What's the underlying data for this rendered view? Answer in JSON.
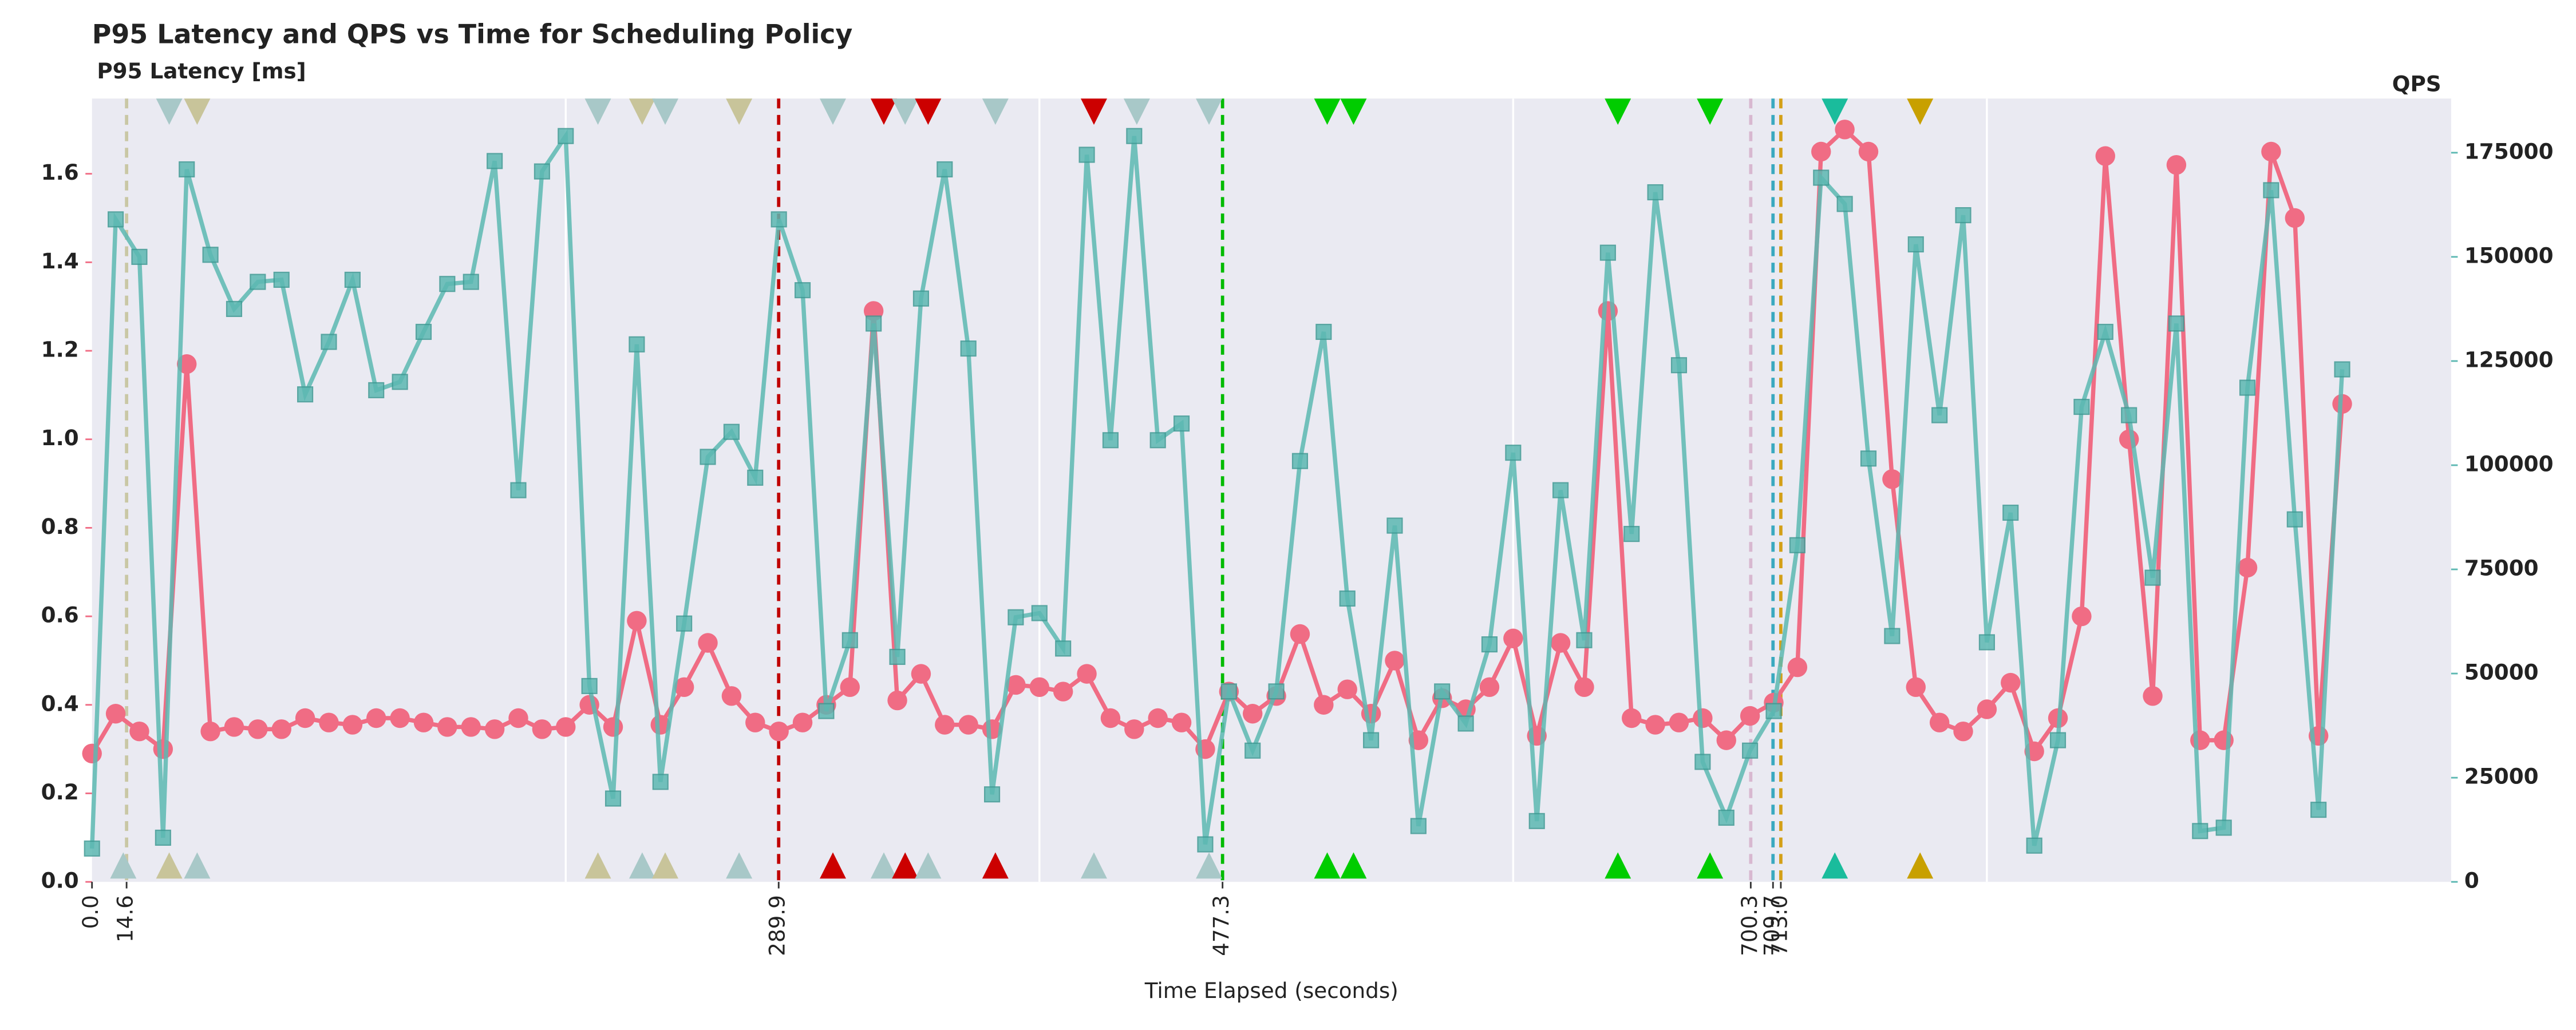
{
  "chart_data": {
    "type": "line",
    "title": "P95 Latency and QPS vs Time for Scheduling Policy",
    "ylabel": "P95 Latency [ms]",
    "y2label": "QPS",
    "xlabel": "Time Elapsed (seconds)",
    "x": [
      0,
      10,
      20,
      30,
      40,
      50,
      60,
      70,
      80,
      90,
      100,
      110,
      120,
      130,
      140,
      150,
      160,
      170,
      180,
      190,
      200,
      210,
      220,
      230,
      240,
      250,
      260,
      270,
      280,
      290,
      300,
      310,
      320,
      330,
      340,
      350,
      360,
      370,
      380,
      390,
      400,
      410,
      420,
      430,
      440,
      450,
      460,
      470,
      480,
      490,
      500,
      510,
      520,
      530,
      540,
      550,
      560,
      570,
      580,
      590,
      600,
      610,
      620,
      630,
      640,
      650,
      660,
      670,
      680,
      690,
      700,
      710,
      720,
      730,
      740,
      750,
      760,
      770,
      780,
      790,
      800,
      810,
      820,
      830,
      840,
      850,
      860,
      870,
      880,
      890,
      900,
      910,
      920,
      930,
      940,
      950
    ],
    "series": [
      {
        "color": "#f06c84",
        "marker": "circle",
        "values": [
          0.29,
          0.38,
          0.34,
          0.3,
          1.17,
          0.34,
          0.35,
          0.345,
          0.345,
          0.37,
          0.36,
          0.355,
          0.37,
          0.37,
          0.36,
          0.35,
          0.35,
          0.345,
          0.37,
          0.345,
          0.35,
          0.4,
          0.35,
          0.59,
          0.355,
          0.44,
          0.54,
          0.42,
          0.36,
          0.34,
          0.36,
          0.4,
          0.44,
          1.29,
          0.41,
          0.47,
          0.355,
          0.355,
          0.345,
          0.445,
          0.44,
          0.43,
          0.47,
          0.37,
          0.345,
          0.37,
          0.36,
          0.3,
          0.43,
          0.38,
          0.42,
          0.56,
          0.4,
          0.435,
          0.38,
          0.5,
          0.32,
          0.415,
          0.39,
          0.44,
          0.55,
          0.33,
          0.54,
          0.44,
          1.29,
          0.37,
          0.355,
          0.36,
          0.37,
          0.32,
          0.375,
          0.405,
          0.485,
          1.65,
          1.7,
          1.65,
          0.91,
          0.44,
          0.36,
          0.34,
          0.39,
          0.45,
          0.295,
          0.37,
          0.6,
          1.64,
          1.0,
          0.42,
          1.62,
          0.32,
          0.32,
          0.71,
          1.65,
          1.5,
          0.33,
          1.08
        ]
      },
      {
        "color": "#5cb8b2",
        "marker": "square",
        "axis": "y2",
        "values": [
          8000,
          159000,
          150000,
          10600,
          171000,
          150500,
          137500,
          144000,
          144500,
          117000,
          129600,
          144500,
          118000,
          120000,
          132000,
          143500,
          144000,
          173000,
          94000,
          170500,
          179000,
          47000,
          20000,
          129000,
          24000,
          62000,
          102000,
          108000,
          97000,
          159000,
          142000,
          41000,
          58000,
          134000,
          54000,
          140000,
          171000,
          128000,
          21000,
          63500,
          64500,
          56000,
          174500,
          106000,
          179000,
          106000,
          110000,
          9000,
          45700,
          31500,
          45700,
          101000,
          132000,
          68000,
          34000,
          85500,
          13400,
          45700,
          38000,
          57000,
          103000,
          14600,
          94000,
          58000,
          151000,
          83500,
          165500,
          124000,
          28800,
          15400,
          31500,
          41000,
          80800,
          169000,
          162700,
          101600,
          59000,
          153000,
          112000,
          160000,
          57500,
          88600,
          8700,
          34000,
          114000,
          132000,
          112000,
          73000,
          134000,
          12200,
          13000,
          118600,
          166000,
          87000,
          17300,
          123000
        ]
      }
    ],
    "xlim": [
      0,
      996
    ],
    "xticks": [
      {
        "value": 0,
        "label": "0.0"
      },
      14.6,
      289.9,
      477.3,
      700.3,
      709.7,
      {
        "value": 713,
        "label": "713.0"
      }
    ],
    "xgrid": [
      200,
      400,
      600,
      800
    ],
    "ylim": [
      0,
      1.77
    ],
    "yticks": [
      {
        "value": 0,
        "label": "0.0"
      },
      0.2,
      0.4,
      0.6,
      0.8,
      {
        "value": 1,
        "label": "1.0"
      },
      1.2,
      1.4,
      1.6
    ],
    "y2lim": [
      0,
      188000
    ],
    "y2ticks": [
      0,
      25000,
      50000,
      75000,
      100000,
      125000,
      150000,
      175000
    ],
    "vlines": [
      {
        "x": 14.6,
        "color": "#c9c7a5"
      },
      {
        "x": 289.9,
        "color": "#c00000"
      },
      {
        "x": 477.3,
        "color": "#00bb00"
      },
      {
        "x": 700.3,
        "color": "#d8b8d0"
      },
      {
        "x": 709.7,
        "color": "#3aa9c0"
      },
      {
        "x": 713,
        "color": "#d4a017"
      }
    ],
    "top_markers": [
      {
        "x": 32.6,
        "color": "#a8c8c8"
      },
      {
        "x": 44.4,
        "color": "#c8c49a"
      },
      {
        "x": 213.6,
        "color": "#a8c8c8"
      },
      {
        "x": 232.3,
        "color": "#c8c49a"
      },
      {
        "x": 242,
        "color": "#a8c8c8"
      },
      {
        "x": 273.2,
        "color": "#c8c49a"
      },
      {
        "x": 312.8,
        "color": "#a8c8c8"
      },
      {
        "x": 334.3,
        "color": "#cc0000"
      },
      {
        "x": 343.3,
        "color": "#a8c8c8"
      },
      {
        "x": 353,
        "color": "#cc0000"
      },
      {
        "x": 381.4,
        "color": "#a8c8c8"
      },
      {
        "x": 423,
        "color": "#cc0000"
      },
      {
        "x": 441.1,
        "color": "#a8c8c8"
      },
      {
        "x": 471.6,
        "color": "#a8c8c8"
      },
      {
        "x": 521.5,
        "color": "#00cc00"
      },
      {
        "x": 532.6,
        "color": "#00cc00"
      },
      {
        "x": 644.2,
        "color": "#00cc00"
      },
      {
        "x": 683.1,
        "color": "#00cc00"
      },
      {
        "x": 735.8,
        "color": "#1abc9c"
      },
      {
        "x": 771.8,
        "color": "#c8a000"
      }
    ],
    "bottom_markers": [
      {
        "x": 13.2,
        "color": "#a8c8c8"
      },
      {
        "x": 32.6,
        "color": "#c8c49a"
      },
      {
        "x": 44.4,
        "color": "#a8c8c8"
      },
      {
        "x": 213.6,
        "color": "#c8c49a"
      },
      {
        "x": 232.3,
        "color": "#a8c8c8"
      },
      {
        "x": 242,
        "color": "#c8c49a"
      },
      {
        "x": 273.2,
        "color": "#a8c8c8"
      },
      {
        "x": 312.8,
        "color": "#cc0000"
      },
      {
        "x": 334.3,
        "color": "#a8c8c8"
      },
      {
        "x": 343.3,
        "color": "#cc0000"
      },
      {
        "x": 353,
        "color": "#a8c8c8"
      },
      {
        "x": 381.4,
        "color": "#cc0000"
      },
      {
        "x": 423,
        "color": "#a8c8c8"
      },
      {
        "x": 471.6,
        "color": "#a8c8c8"
      },
      {
        "x": 521.5,
        "color": "#00cc00"
      },
      {
        "x": 532.6,
        "color": "#00cc00"
      },
      {
        "x": 644.2,
        "color": "#00cc00"
      },
      {
        "x": 683.1,
        "color": "#00cc00"
      },
      {
        "x": 735.8,
        "color": "#1abc9c"
      },
      {
        "x": 771.8,
        "color": "#c8a000"
      }
    ],
    "background": "#eaeaf2"
  }
}
